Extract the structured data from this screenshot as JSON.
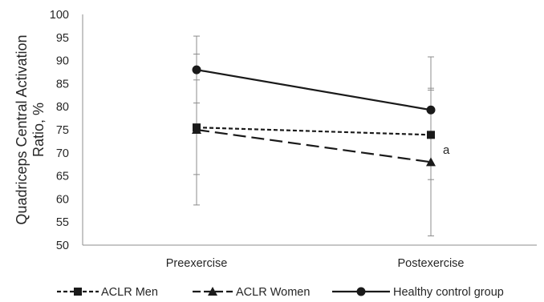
{
  "chart_data": {
    "type": "line",
    "title": "",
    "xlabel": "",
    "ylabel_lines": [
      "Quadriceps Central Activation",
      "Ratio, %"
    ],
    "ylim": [
      50,
      100
    ],
    "yticks": [
      50,
      55,
      60,
      65,
      70,
      75,
      80,
      85,
      90,
      95,
      100
    ],
    "categories": [
      "Preexercise",
      "Postexercise"
    ],
    "grid": false,
    "legend_position": "bottom",
    "series": [
      {
        "name": "ACLR Men",
        "values": [
          75.5,
          73.9
        ],
        "error_low": [
          65.3,
          64.2
        ],
        "error_high": [
          85.8,
          83.6
        ],
        "marker": "square",
        "dash": "short-dash",
        "color": "#1a1a1a"
      },
      {
        "name": "ACLR Women",
        "values": [
          75.0,
          68.0
        ],
        "error_low": [
          58.7,
          52.0
        ],
        "error_high": [
          91.4,
          84.0
        ],
        "marker": "triangle",
        "dash": "long-dash",
        "color": "#1a1a1a"
      },
      {
        "name": "Healthy control group",
        "values": [
          88.0,
          79.3
        ],
        "error_low": [
          80.8,
          67.8
        ],
        "error_high": [
          95.3,
          90.8
        ],
        "marker": "circle",
        "dash": "solid",
        "color": "#1a1a1a"
      }
    ],
    "annotations": [
      {
        "text": "a",
        "category": "Postexercise",
        "y": 70.7
      }
    ],
    "colors": {
      "axis": "#8c8c8c",
      "errorbar": "#8c8c8c",
      "text": "#262626"
    }
  }
}
